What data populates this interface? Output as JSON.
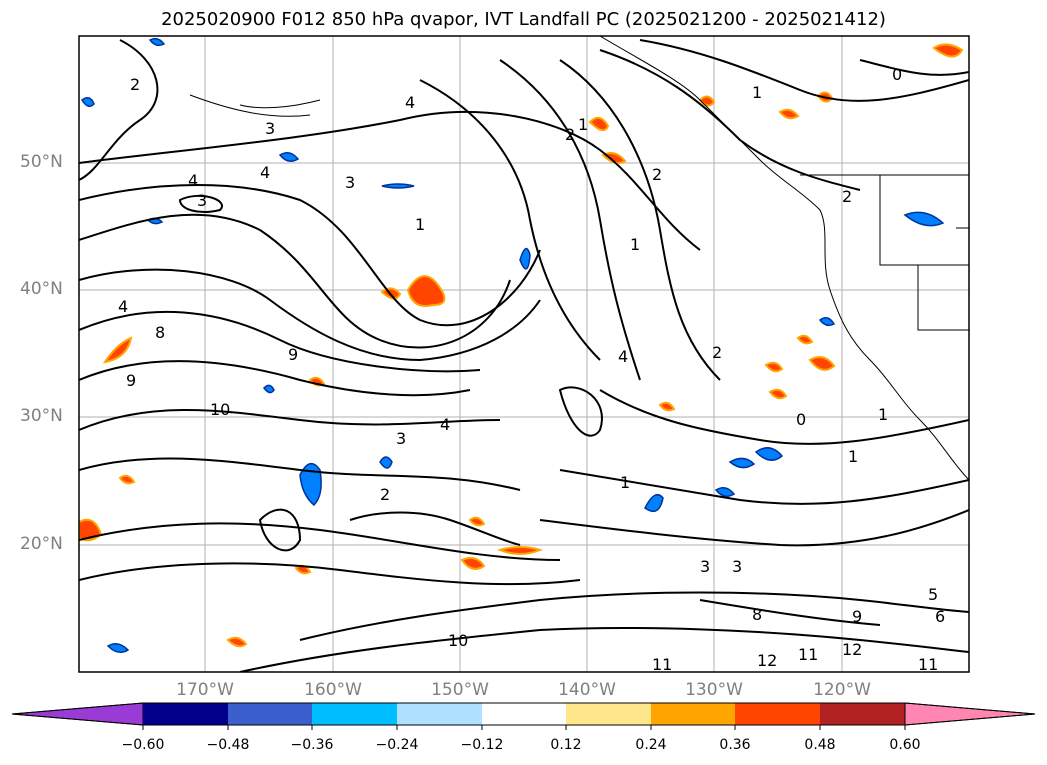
{
  "title": "2025020900 F012 850 hPa qvapor, IVT Landfall PC (2025021200 - 2025021412)",
  "map": {
    "lat_labels": [
      "50°N",
      "40°N",
      "30°N",
      "20°N"
    ],
    "lon_labels": [
      "170°W",
      "160°W",
      "150°W",
      "140°W",
      "130°W",
      "120°W"
    ],
    "contour_labels": [
      "4",
      "3",
      "4",
      "3",
      "4",
      "3",
      "2",
      "1",
      "2",
      "1",
      "2",
      "1",
      "0",
      "2",
      "1",
      "4",
      "9",
      "10",
      "8",
      "9",
      "4",
      "3",
      "2",
      "1",
      "0",
      "1",
      "1",
      "3",
      "3",
      "8",
      "9",
      "10",
      "11",
      "12",
      "11",
      "12",
      "11",
      "6",
      "5",
      "4",
      "2"
    ],
    "colors": {
      "frame": "#000000",
      "grid": "#b0b0b0",
      "contour": "#000000",
      "coast": "#000000",
      "positive_shade": "#ff4500",
      "negative_shade": "#0080ff"
    }
  },
  "colorbar": {
    "ticks": [
      "−0.60",
      "−0.48",
      "−0.36",
      "−0.24",
      "−0.12",
      "0.12",
      "0.24",
      "0.36",
      "0.48",
      "0.60"
    ],
    "colors": [
      "#9b3bd6",
      "#00008b",
      "#3b5fcd",
      "#00bfff",
      "#b0e0ff",
      "#ffffff",
      "#ffe68a",
      "#ffa500",
      "#ff4500",
      "#b22222",
      "#ff86b0"
    ]
  }
}
